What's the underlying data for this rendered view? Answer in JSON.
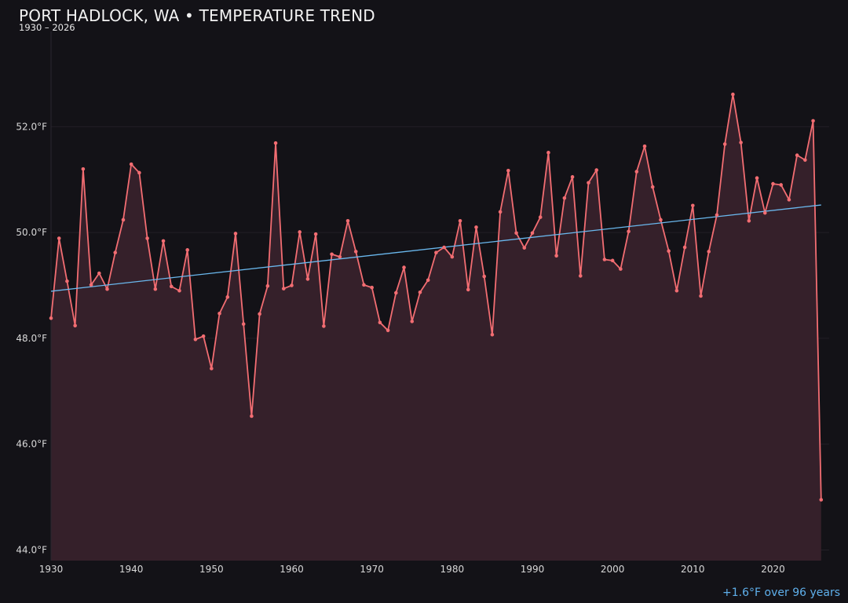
{
  "header": {
    "title": "PORT HADLOCK, WA • TEMPERATURE TREND",
    "subtitle": "1930 – 2026"
  },
  "footer": {
    "trend_note": "+1.6°F over 96 years"
  },
  "colors": {
    "background": "#131217",
    "series": "#f26d72",
    "area_fill": "#35202a",
    "trend": "#6ab8ee",
    "grid": "#221f26"
  },
  "chart_data": {
    "type": "line",
    "title": "PORT HADLOCK, WA • TEMPERATURE TREND",
    "subtitle": "1930 – 2026",
    "xlabel": "",
    "ylabel": "",
    "xlim": [
      1930,
      2027
    ],
    "ylim": [
      43.8,
      53.8
    ],
    "x_ticks": [
      1930,
      1940,
      1950,
      1960,
      1970,
      1980,
      1990,
      2000,
      2010,
      2020
    ],
    "y_ticks": [
      44.0,
      46.0,
      48.0,
      50.0,
      52.0
    ],
    "y_tick_labels": [
      "44.0°F",
      "46.0°F",
      "48.0°F",
      "50.0°F",
      "52.0°F"
    ],
    "grid": true,
    "area_filled": true,
    "series": [
      {
        "x": [
          1930,
          1931,
          1932,
          1933,
          1934,
          1935,
          1936,
          1937,
          1938,
          1939,
          1940,
          1941,
          1942,
          1943,
          1944,
          1945,
          1946,
          1947,
          1948,
          1949,
          1950,
          1951,
          1952,
          1953,
          1954,
          1955,
          1956,
          1957,
          1958,
          1959,
          1960,
          1961,
          1962,
          1963,
          1964,
          1965,
          1966,
          1967,
          1968,
          1969,
          1970,
          1971,
          1972,
          1973,
          1974,
          1975,
          1976,
          1977,
          1978,
          1979,
          1980,
          1981,
          1982,
          1983,
          1984,
          1985,
          1986,
          1987,
          1988,
          1989,
          1990,
          1991,
          1992,
          1993,
          1994,
          1995,
          1996,
          1997,
          1998,
          1999,
          2000,
          2001,
          2002,
          2003,
          2004,
          2005,
          2006,
          2007,
          2008,
          2009,
          2010,
          2011,
          2012,
          2013,
          2014,
          2015,
          2016,
          2017,
          2018,
          2019,
          2020,
          2021,
          2022,
          2023,
          2024,
          2025,
          2026
        ],
        "values": [
          48.38,
          49.89,
          49.08,
          48.24,
          51.2,
          49.01,
          49.23,
          48.93,
          49.62,
          50.24,
          51.29,
          51.13,
          49.89,
          48.93,
          49.84,
          48.98,
          48.9,
          49.67,
          47.98,
          48.04,
          47.43,
          48.47,
          48.78,
          49.98,
          48.27,
          46.53,
          48.46,
          48.99,
          51.69,
          48.94,
          49.0,
          50.01,
          49.12,
          49.97,
          48.23,
          49.59,
          49.54,
          50.22,
          49.64,
          49.01,
          48.96,
          48.3,
          48.15,
          48.86,
          49.34,
          48.32,
          48.87,
          49.1,
          49.62,
          49.72,
          49.54,
          50.22,
          48.92,
          50.1,
          49.17,
          48.07,
          50.39,
          51.17,
          49.99,
          49.71,
          49.99,
          50.29,
          51.51,
          49.56,
          50.65,
          51.05,
          49.18,
          50.94,
          51.18,
          49.49,
          49.47,
          49.31,
          50.02,
          51.15,
          51.63,
          50.86,
          50.24,
          49.65,
          48.9,
          49.72,
          50.51,
          48.8,
          49.64,
          50.33,
          51.67,
          52.61,
          51.7,
          50.22,
          51.03,
          50.37,
          50.92,
          50.9,
          50.62,
          51.46,
          51.37,
          52.11,
          44.95
        ]
      },
      {
        "type": "trend",
        "x": [
          1930,
          2026
        ],
        "values": [
          48.89,
          50.52
        ]
      }
    ]
  }
}
